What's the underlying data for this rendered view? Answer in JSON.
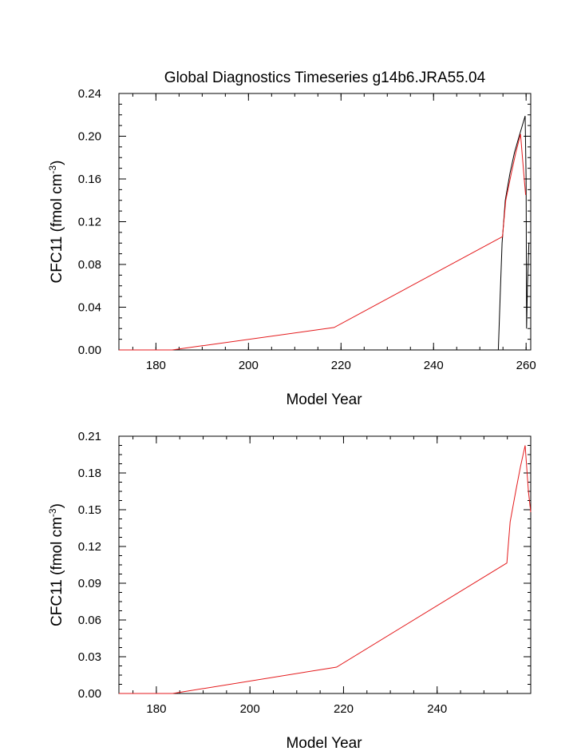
{
  "title": "Global Diagnostics Timeseries g14b6.JRA55.04",
  "chart_data": [
    {
      "type": "line",
      "title": "Global Diagnostics Timeseries g14b6.JRA55.04",
      "xlabel": "Model Year",
      "ylabel": "CFC11 (fmol cm",
      "ylabel_sup": "-3",
      "ylabel_close": ")",
      "xlim": [
        172,
        261
      ],
      "ylim": [
        0,
        0.24
      ],
      "xticks": [
        180,
        200,
        220,
        240,
        260
      ],
      "xtick_labels": [
        "180",
        "200",
        "220",
        "240",
        "260"
      ],
      "yticks": [
        0,
        0.04,
        0.08,
        0.12,
        0.16,
        0.2,
        0.24
      ],
      "ytick_labels": [
        "0.00",
        "0.04",
        "0.08",
        "0.12",
        "0.16",
        "0.20",
        "0.24"
      ],
      "grid": false,
      "series": [
        {
          "color": "#000000",
          "points": [
            [
              254.0,
              0.0
            ],
            [
              254.4,
              0.05
            ],
            [
              254.8,
              0.1
            ],
            [
              255.5,
              0.14
            ],
            [
              256.5,
              0.165
            ],
            [
              257.5,
              0.185
            ],
            [
              258.5,
              0.2
            ],
            [
              259.8,
              0.219
            ],
            [
              260.0,
              0.16
            ],
            [
              260.1,
              0.02
            ],
            [
              260.3,
              0.06
            ],
            [
              260.6,
              0.1
            ]
          ]
        },
        {
          "color": "#e41a1c",
          "points": [
            [
              172,
              0.0
            ],
            [
              183.5,
              0.0
            ],
            [
              218.5,
              0.021
            ],
            [
              254.9,
              0.106
            ],
            [
              255.6,
              0.14
            ],
            [
              256.8,
              0.165
            ],
            [
              257.8,
              0.185
            ],
            [
              258.8,
              0.202
            ],
            [
              259.5,
              0.165
            ],
            [
              259.9,
              0.145
            ]
          ]
        }
      ]
    },
    {
      "type": "line",
      "title": "",
      "xlabel": "Model Year",
      "ylabel": "CFC11 (fmol cm",
      "ylabel_sup": "-3",
      "ylabel_close": ")",
      "xlim": [
        172,
        260
      ],
      "ylim": [
        0,
        0.21
      ],
      "xticks": [
        180,
        200,
        220,
        240
      ],
      "xtick_labels": [
        "180",
        "200",
        "220",
        "240"
      ],
      "yticks": [
        0,
        0.03,
        0.06,
        0.09,
        0.12,
        0.15,
        0.18,
        0.21
      ],
      "ytick_labels": [
        "0.00",
        "0.03",
        "0.06",
        "0.09",
        "0.12",
        "0.15",
        "0.18",
        "0.21"
      ],
      "grid": false,
      "series": [
        {
          "color": "#e41a1c",
          "points": [
            [
              172,
              0.0
            ],
            [
              183.5,
              0.0
            ],
            [
              218.5,
              0.0215
            ],
            [
              254.9,
              0.1065
            ],
            [
              255.6,
              0.14
            ],
            [
              256.8,
              0.165
            ],
            [
              257.8,
              0.185
            ],
            [
              258.8,
              0.2025
            ],
            [
              259.5,
              0.165
            ],
            [
              260.0,
              0.148
            ]
          ]
        }
      ]
    }
  ]
}
